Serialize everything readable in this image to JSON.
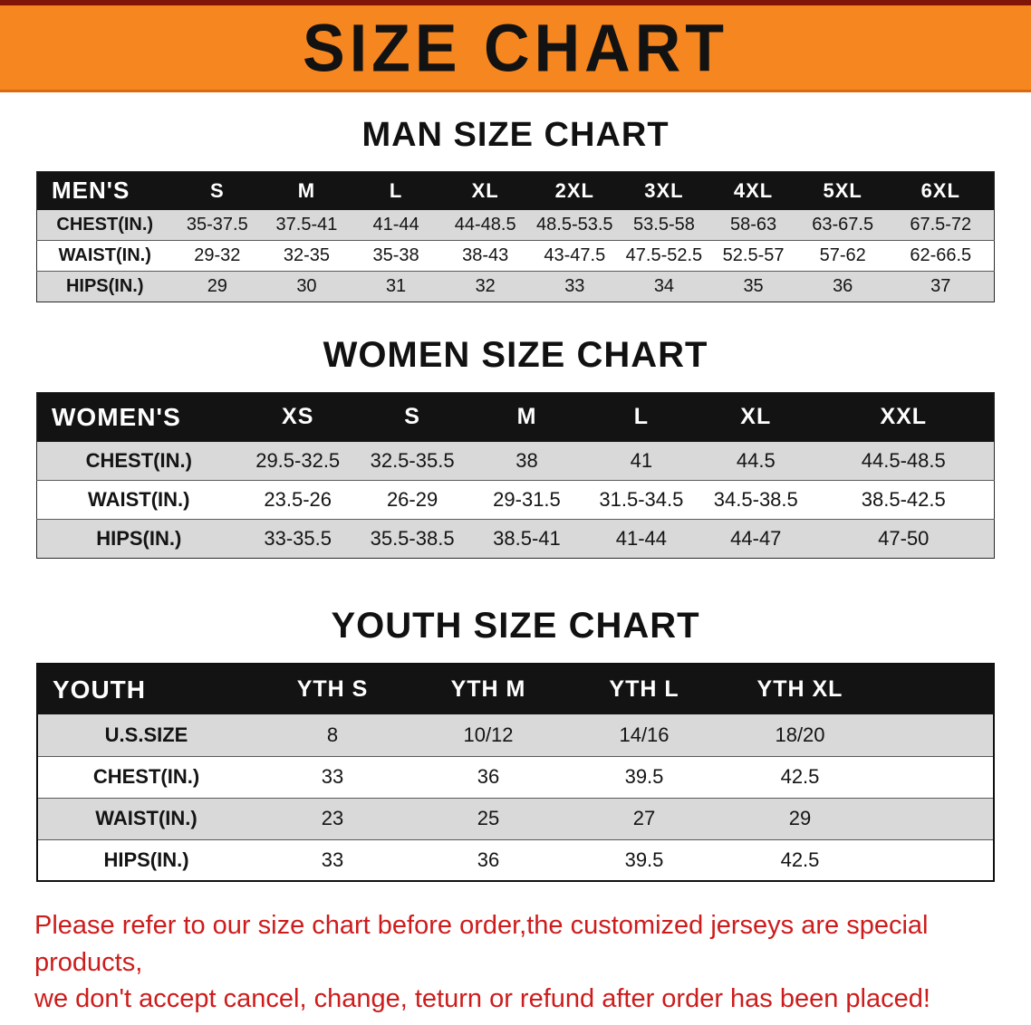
{
  "banner": {
    "title": "SIZE CHART"
  },
  "sections": [
    {
      "title": "MAN SIZE CHART",
      "header": [
        "MEN'S",
        "S",
        "M",
        "L",
        "XL",
        "2XL",
        "3XL",
        "4XL",
        "5XL",
        "6XL"
      ],
      "rows": [
        [
          "CHEST(IN.)",
          "35-37.5",
          "37.5-41",
          "41-44",
          "44-48.5",
          "48.5-53.5",
          "53.5-58",
          "58-63",
          "63-67.5",
          "67.5-72"
        ],
        [
          "WAIST(IN.)",
          "29-32",
          "32-35",
          "35-38",
          "38-43",
          "43-47.5",
          "47.5-52.5",
          "52.5-57",
          "57-62",
          "62-66.5"
        ],
        [
          "HIPS(IN.)",
          "29",
          "30",
          "31",
          "32",
          "33",
          "34",
          "35",
          "36",
          "37"
        ]
      ]
    },
    {
      "title": "WOMEN SIZE CHART",
      "header": [
        "WOMEN'S",
        "XS",
        "S",
        "M",
        "L",
        "XL",
        "XXL"
      ],
      "rows": [
        [
          "CHEST(IN.)",
          "29.5-32.5",
          "32.5-35.5",
          "38",
          "41",
          "44.5",
          "44.5-48.5"
        ],
        [
          "WAIST(IN.)",
          "23.5-26",
          "26-29",
          "29-31.5",
          "31.5-34.5",
          "34.5-38.5",
          "38.5-42.5"
        ],
        [
          "HIPS(IN.)",
          "33-35.5",
          "35.5-38.5",
          "38.5-41",
          "41-44",
          "44-47",
          "47-50"
        ]
      ]
    },
    {
      "title": "YOUTH SIZE CHART",
      "header": [
        "YOUTH",
        "YTH S",
        "YTH M",
        "YTH L",
        "YTH XL"
      ],
      "rows": [
        [
          "U.S.SIZE",
          "8",
          "10/12",
          "14/16",
          "18/20"
        ],
        [
          "CHEST(IN.)",
          "33",
          "36",
          "39.5",
          "42.5"
        ],
        [
          "WAIST(IN.)",
          "23",
          "25",
          "27",
          "29"
        ],
        [
          "HIPS(IN.)",
          "33",
          "36",
          "39.5",
          "42.5"
        ]
      ]
    }
  ],
  "disclaimer": {
    "line1": "Please refer to our size chart before order,the customized jerseys are special products,",
    "line2": "we don't accept cancel, change, teturn or refund after order has been placed!"
  },
  "colors": {
    "banner_bg": "#f6861f",
    "header_bg": "#131313",
    "stripe": "#d9d9d9",
    "disclaimer": "#ce1c1c"
  }
}
